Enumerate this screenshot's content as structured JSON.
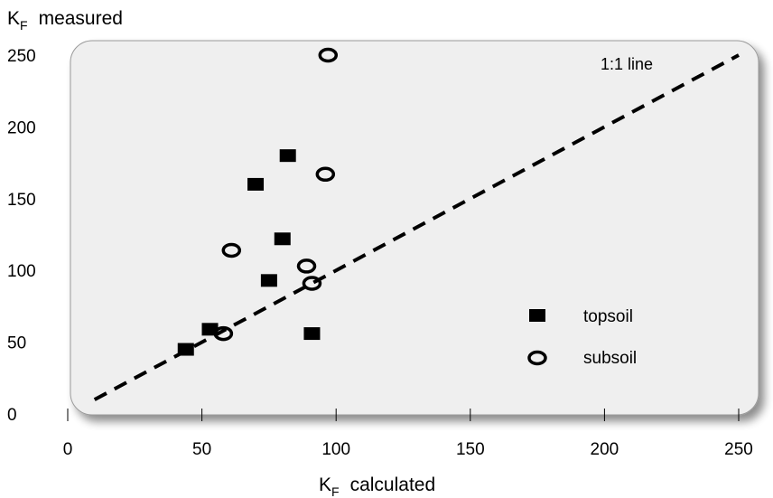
{
  "chart_data": {
    "type": "scatter",
    "title": "",
    "xlabel": {
      "main": "K",
      "sub": "F",
      "rest": "calculated"
    },
    "ylabel": {
      "main": "K",
      "sub": "F",
      "rest": "measured"
    },
    "xlim": [
      0,
      250
    ],
    "ylim": [
      0,
      250
    ],
    "xticks": [
      0,
      50,
      100,
      150,
      200,
      250
    ],
    "yticks": [
      0,
      50,
      100,
      150,
      200,
      250
    ],
    "grid": false,
    "legend_position": "bottom-right",
    "reference_line": {
      "label": "1:1 line",
      "from": [
        10,
        10
      ],
      "to": [
        250,
        250
      ],
      "style": "dashed"
    },
    "series": [
      {
        "name": "topsoil",
        "marker": "filled-square",
        "points": [
          [
            44,
            45
          ],
          [
            53,
            59
          ],
          [
            70,
            160
          ],
          [
            75,
            93
          ],
          [
            80,
            122
          ],
          [
            82,
            180
          ],
          [
            91,
            56
          ]
        ]
      },
      {
        "name": "subsoil",
        "marker": "open-circle",
        "points": [
          [
            58,
            56
          ],
          [
            61,
            114
          ],
          [
            89,
            103
          ],
          [
            91,
            91
          ],
          [
            96,
            167
          ],
          [
            97,
            250
          ]
        ]
      }
    ]
  }
}
